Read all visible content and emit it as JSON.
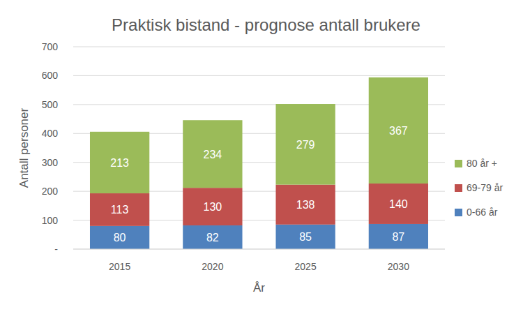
{
  "chart_data": {
    "type": "bar",
    "stacked": true,
    "title": "Praktisk bistand - prognose antall brukere",
    "x_label": "År",
    "y_label": "Antall personer",
    "categories": [
      "2015",
      "2020",
      "2025",
      "2030"
    ],
    "series": [
      {
        "name": "0-66 år",
        "color": "#4f81bd",
        "values": [
          80,
          82,
          85,
          87
        ]
      },
      {
        "name": "69-79 år",
        "color": "#c0504d",
        "values": [
          113,
          130,
          138,
          140
        ]
      },
      {
        "name": "80 år +",
        "color": "#9bbb59",
        "values": [
          213,
          234,
          279,
          367
        ]
      }
    ],
    "ylim": [
      0,
      700
    ],
    "yticks": [
      {
        "value": 0,
        "label": "-"
      },
      100,
      200,
      300,
      400,
      500,
      600,
      700
    ],
    "grid": true,
    "legend": "right",
    "data_labels": true
  }
}
